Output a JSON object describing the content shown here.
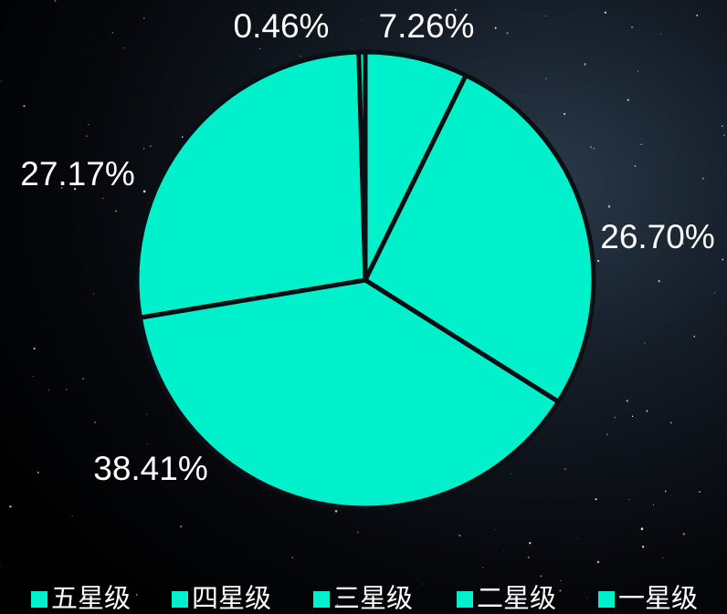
{
  "chart_data": {
    "type": "pie",
    "categories": [
      "五星级",
      "四星级",
      "三星级",
      "二星级",
      "一星级"
    ],
    "values": [
      7.26,
      26.7,
      38.41,
      27.17,
      0.46
    ],
    "value_labels": [
      "7.26%",
      "26.70%",
      "38.41%",
      "27.17%",
      "0.46%"
    ],
    "color": "#00f0cc"
  }
}
